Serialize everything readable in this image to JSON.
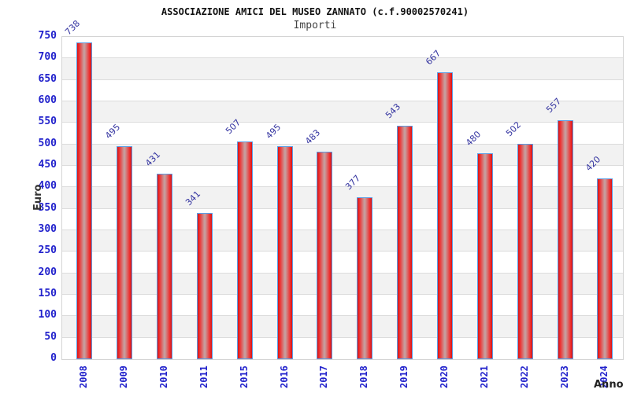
{
  "page": {
    "background": "#ffffff"
  },
  "chart_data": {
    "type": "bar",
    "title": "ASSOCIAZIONE AMICI DEL MUSEO ZANNATO (c.f.90002570241)",
    "subtitle": "Importi",
    "xlabel": "Anno",
    "ylabel": "Euro",
    "categories": [
      "2008",
      "2009",
      "2010",
      "2011",
      "2015",
      "2016",
      "2017",
      "2018",
      "2019",
      "2020",
      "2021",
      "2022",
      "2023",
      "2024"
    ],
    "values": [
      738,
      495,
      431,
      341,
      507,
      495,
      483,
      377,
      543,
      667,
      480,
      502,
      557,
      420
    ],
    "ylim": [
      0,
      750
    ],
    "ytick_step": 50,
    "yticks": [
      0,
      50,
      100,
      150,
      200,
      250,
      300,
      350,
      400,
      450,
      500,
      550,
      600,
      650,
      700,
      750
    ],
    "grid": "horizontal-bands",
    "legend": "none",
    "bar_value_labels": true,
    "colors": {
      "bar_fill_edge": "#d81414",
      "bar_fill_mid": "#ee3030",
      "bar_fill_highlight": "#c79e9e",
      "bar_border": "#5b9ce4",
      "tick_label": "#2222cc",
      "value_label": "#3333a0",
      "axis_title": "#333333",
      "title": "#111111",
      "subtitle": "#444444",
      "gridline": "#dcdcdc",
      "band_alt": "#f2f2f2",
      "plot_border": "#d4d4d4",
      "background": "#ffffff"
    }
  }
}
